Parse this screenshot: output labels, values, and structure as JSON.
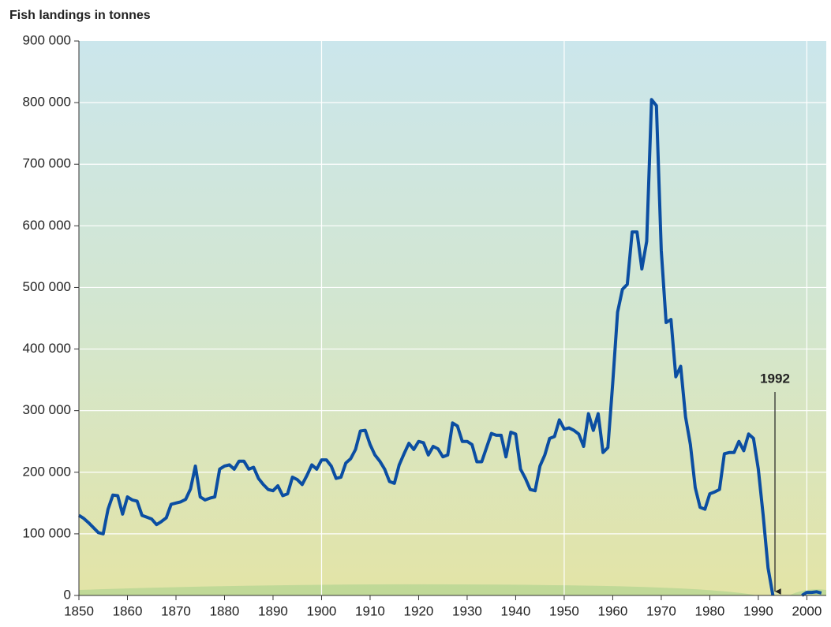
{
  "chart_data": {
    "type": "line",
    "title": "Fish landings in tonnes",
    "x": [
      1850,
      1851,
      1852,
      1853,
      1854,
      1855,
      1856,
      1857,
      1858,
      1859,
      1860,
      1861,
      1862,
      1863,
      1864,
      1865,
      1866,
      1867,
      1868,
      1869,
      1870,
      1871,
      1872,
      1873,
      1874,
      1875,
      1876,
      1877,
      1878,
      1879,
      1880,
      1881,
      1882,
      1883,
      1884,
      1885,
      1886,
      1887,
      1888,
      1889,
      1890,
      1891,
      1892,
      1893,
      1894,
      1895,
      1896,
      1897,
      1898,
      1899,
      1900,
      1901,
      1902,
      1903,
      1904,
      1905,
      1906,
      1907,
      1908,
      1909,
      1910,
      1911,
      1912,
      1913,
      1914,
      1915,
      1916,
      1917,
      1918,
      1919,
      1920,
      1921,
      1922,
      1923,
      1924,
      1925,
      1926,
      1927,
      1928,
      1929,
      1930,
      1931,
      1932,
      1933,
      1934,
      1935,
      1936,
      1937,
      1938,
      1939,
      1940,
      1941,
      1942,
      1943,
      1944,
      1945,
      1946,
      1947,
      1948,
      1949,
      1950,
      1951,
      1952,
      1953,
      1954,
      1955,
      1956,
      1957,
      1958,
      1959,
      1960,
      1961,
      1962,
      1963,
      1964,
      1965,
      1966,
      1967,
      1968,
      1969,
      1970,
      1971,
      1972,
      1973,
      1974,
      1975,
      1976,
      1977,
      1978,
      1979,
      1980,
      1981,
      1982,
      1983,
      1984,
      1985,
      1986,
      1987,
      1988,
      1989,
      1990,
      1991,
      1992,
      1993,
      1994,
      1995,
      1996,
      1997,
      1998,
      1999,
      2000,
      2001,
      2002,
      2003
    ],
    "values": [
      130000,
      125000,
      118000,
      110000,
      102000,
      100000,
      140000,
      163000,
      162000,
      132000,
      160000,
      155000,
      153000,
      130000,
      127000,
      124000,
      115000,
      120000,
      126000,
      148000,
      150000,
      152000,
      156000,
      173000,
      210000,
      160000,
      155000,
      158000,
      160000,
      205000,
      210000,
      212000,
      205000,
      218000,
      218000,
      205000,
      208000,
      190000,
      180000,
      172000,
      170000,
      178000,
      162000,
      165000,
      192000,
      188000,
      180000,
      195000,
      212000,
      205000,
      220000,
      220000,
      210000,
      190000,
      192000,
      215000,
      222000,
      237000,
      267000,
      268000,
      245000,
      228000,
      218000,
      205000,
      185000,
      182000,
      212000,
      230000,
      247000,
      237000,
      250000,
      248000,
      228000,
      242000,
      238000,
      225000,
      228000,
      280000,
      275000,
      250000,
      250000,
      245000,
      217000,
      217000,
      240000,
      263000,
      260000,
      260000,
      225000,
      265000,
      262000,
      205000,
      190000,
      172000,
      170000,
      210000,
      228000,
      255000,
      258000,
      285000,
      270000,
      272000,
      268000,
      262000,
      242000,
      295000,
      268000,
      295000,
      232000,
      240000,
      345000,
      460000,
      497000,
      505000,
      590000,
      590000,
      530000,
      575000,
      805000,
      795000,
      560000,
      443000,
      448000,
      355000,
      372000,
      290000,
      245000,
      175000,
      143000,
      140000,
      165000,
      168000,
      172000,
      230000,
      232000,
      232000,
      250000,
      235000,
      262000,
      255000,
      205000,
      130000,
      45000,
      0,
      null,
      null,
      null,
      null,
      null,
      0,
      5000,
      5000,
      6000,
      4000
    ],
    "color": "#0b4ea2",
    "xlim": [
      1850,
      2004
    ],
    "ylim": [
      0,
      900000
    ],
    "xticks": [
      1850,
      1860,
      1870,
      1880,
      1890,
      1900,
      1910,
      1920,
      1930,
      1940,
      1950,
      1960,
      1970,
      1980,
      1990,
      2000
    ],
    "yticks": [
      {
        "value": 0,
        "label": "0"
      },
      {
        "value": 100000,
        "label": "100 000"
      },
      {
        "value": 200000,
        "label": "200 000"
      },
      {
        "value": 300000,
        "label": "300 000"
      },
      {
        "value": 400000,
        "label": "400 000"
      },
      {
        "value": 500000,
        "label": "500 000"
      },
      {
        "value": 600000,
        "label": "600 000"
      },
      {
        "value": 700000,
        "label": "700 000"
      },
      {
        "value": 800000,
        "label": "800 000"
      },
      {
        "value": 900000,
        "label": "900 000"
      }
    ],
    "grid": true,
    "annotation": "1992"
  }
}
